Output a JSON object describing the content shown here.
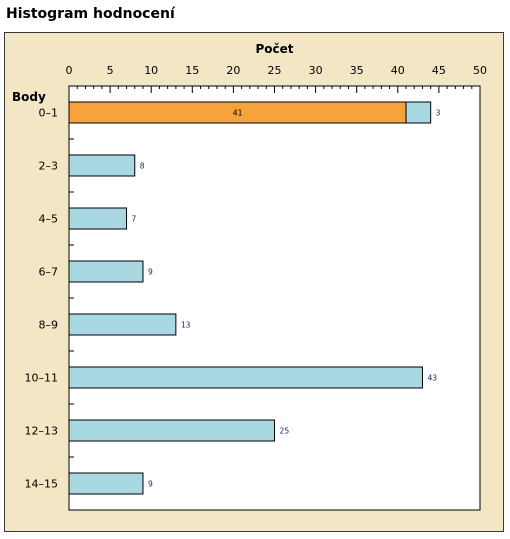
{
  "page": {
    "title": "Histogram hodnocení"
  },
  "chart_data": {
    "type": "bar",
    "orientation": "horizontal",
    "xlabel": "Počet",
    "ylabel": "Body",
    "xlim": [
      0,
      50
    ],
    "x_ticks": [
      0,
      5,
      10,
      15,
      20,
      25,
      30,
      35,
      40,
      45,
      50
    ],
    "categories": [
      "0–1",
      "2–3",
      "4–5",
      "6–7",
      "8–9",
      "10–11",
      "12–13",
      "14–15"
    ],
    "values": [
      44,
      8,
      7,
      9,
      13,
      43,
      25,
      9
    ],
    "highlight": {
      "category": "0–1",
      "value": 41,
      "remainder": 3
    },
    "colors": {
      "bar": "#a8d8e2",
      "highlight": "#f7a23a",
      "background": "#f2e6c4"
    },
    "grid": false
  }
}
